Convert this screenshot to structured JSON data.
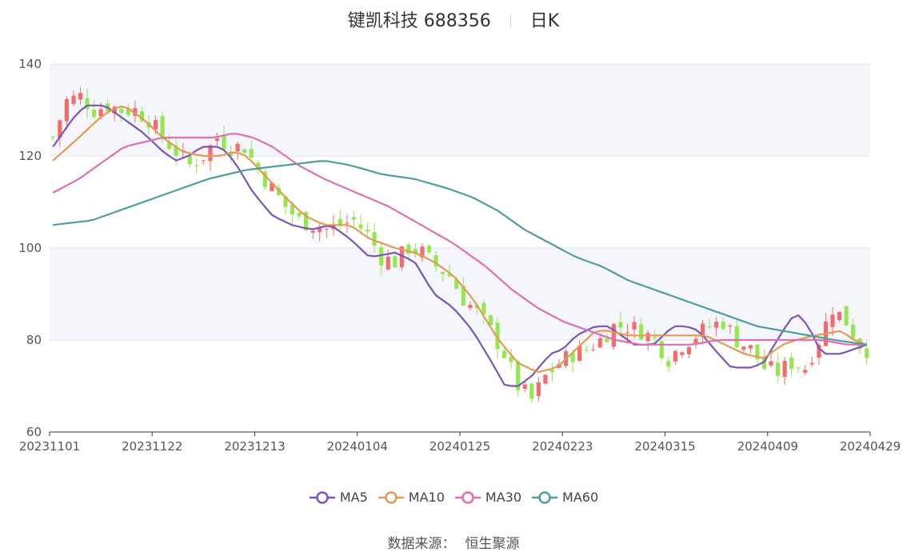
{
  "title": {
    "name": "键凯科技 688356",
    "period": "日K"
  },
  "source": {
    "label": "数据来源：",
    "value": "恒生聚源"
  },
  "colors": {
    "up": "#f56a6a",
    "down": "#92e84e",
    "MA5": "#7b55b8",
    "MA10": "#e39b53",
    "MA30": "#e06fb0",
    "MA60": "#4f9e9d",
    "band": "#f4f6fb",
    "grid": "#e2e6f2",
    "axis": "#333333"
  },
  "chart_data": {
    "type": "candlestick",
    "title": "键凯科技 688356 日K",
    "xlabel": "",
    "ylabel": "",
    "ylim": [
      60,
      140
    ],
    "yticks": [
      60,
      80,
      100,
      120,
      140
    ],
    "xticks": [
      "20231101",
      "20231122",
      "20231213",
      "20240104",
      "20240125",
      "20240223",
      "20240315",
      "20240409",
      "20240429"
    ],
    "grid": true,
    "legend_position": "bottom",
    "n_days": 120,
    "series": [
      {
        "name": "MA5",
        "anchors": [
          [
            0,
            122
          ],
          [
            3,
            128
          ],
          [
            5,
            131
          ],
          [
            8,
            131
          ],
          [
            11,
            128
          ],
          [
            14,
            125
          ],
          [
            17,
            121
          ],
          [
            19,
            119
          ],
          [
            21,
            120
          ],
          [
            23,
            122
          ],
          [
            26,
            122
          ],
          [
            28,
            119
          ],
          [
            31,
            112
          ],
          [
            34,
            107
          ],
          [
            37,
            105
          ],
          [
            40,
            104
          ],
          [
            43,
            105
          ],
          [
            46,
            102
          ],
          [
            49,
            98
          ],
          [
            53,
            99
          ],
          [
            56,
            97
          ],
          [
            59,
            90
          ],
          [
            62,
            87
          ],
          [
            65,
            82
          ],
          [
            68,
            75
          ],
          [
            70,
            70
          ],
          [
            72,
            70
          ],
          [
            74,
            72
          ],
          [
            77,
            77
          ],
          [
            79,
            78
          ],
          [
            81,
            81
          ],
          [
            84,
            83
          ],
          [
            86,
            83
          ],
          [
            88,
            81
          ],
          [
            90,
            79
          ],
          [
            93,
            79
          ],
          [
            96,
            83
          ],
          [
            98,
            83
          ],
          [
            100,
            82
          ],
          [
            103,
            77
          ],
          [
            105,
            74
          ],
          [
            108,
            74
          ],
          [
            110,
            75
          ],
          [
            113,
            82
          ],
          [
            115,
            86
          ],
          [
            117,
            83
          ],
          [
            119,
            77
          ],
          [
            122,
            77
          ],
          [
            124,
            78
          ],
          [
            126,
            79
          ]
        ]
      },
      {
        "name": "MA10",
        "anchors": [
          [
            0,
            119
          ],
          [
            4,
            124
          ],
          [
            7,
            128
          ],
          [
            9,
            130
          ],
          [
            11,
            131
          ],
          [
            14,
            128
          ],
          [
            17,
            124
          ],
          [
            20,
            121
          ],
          [
            23,
            120
          ],
          [
            26,
            120
          ],
          [
            28,
            121
          ],
          [
            30,
            120
          ],
          [
            32,
            117
          ],
          [
            36,
            111
          ],
          [
            39,
            107
          ],
          [
            42,
            105
          ],
          [
            46,
            105
          ],
          [
            49,
            102
          ],
          [
            53,
            100
          ],
          [
            56,
            99
          ],
          [
            59,
            97
          ],
          [
            62,
            94
          ],
          [
            65,
            89
          ],
          [
            69,
            80
          ],
          [
            72,
            75
          ],
          [
            75,
            73
          ],
          [
            78,
            74
          ],
          [
            81,
            78
          ],
          [
            84,
            82
          ],
          [
            86,
            82
          ],
          [
            89,
            81
          ],
          [
            94,
            81
          ],
          [
            98,
            81
          ],
          [
            101,
            81
          ],
          [
            104,
            79
          ],
          [
            107,
            77
          ],
          [
            110,
            76
          ],
          [
            113,
            79
          ],
          [
            115,
            80
          ],
          [
            118,
            81
          ],
          [
            122,
            82
          ],
          [
            124,
            80
          ],
          [
            126,
            79
          ]
        ]
      },
      {
        "name": "MA30",
        "anchors": [
          [
            0,
            112
          ],
          [
            4,
            115
          ],
          [
            8,
            119
          ],
          [
            11,
            122
          ],
          [
            14,
            123
          ],
          [
            17,
            124
          ],
          [
            21,
            124
          ],
          [
            25,
            124
          ],
          [
            28,
            125
          ],
          [
            31,
            124
          ],
          [
            34,
            122
          ],
          [
            38,
            118
          ],
          [
            42,
            115
          ],
          [
            47,
            112
          ],
          [
            52,
            109
          ],
          [
            57,
            105
          ],
          [
            62,
            101
          ],
          [
            67,
            96
          ],
          [
            71,
            91
          ],
          [
            75,
            87
          ],
          [
            79,
            84
          ],
          [
            83,
            82
          ],
          [
            87,
            80
          ],
          [
            91,
            79
          ],
          [
            95,
            79
          ],
          [
            99,
            79
          ],
          [
            103,
            80
          ],
          [
            108,
            80
          ],
          [
            112,
            80
          ],
          [
            115,
            80
          ],
          [
            119,
            80
          ],
          [
            123,
            79
          ],
          [
            126,
            79
          ]
        ]
      },
      {
        "name": "MA60",
        "anchors": [
          [
            0,
            105
          ],
          [
            6,
            106
          ],
          [
            12,
            109
          ],
          [
            18,
            112
          ],
          [
            24,
            115
          ],
          [
            30,
            117
          ],
          [
            36,
            118
          ],
          [
            42,
            119
          ],
          [
            46,
            118
          ],
          [
            51,
            116
          ],
          [
            56,
            115
          ],
          [
            61,
            113
          ],
          [
            65,
            111
          ],
          [
            69,
            108
          ],
          [
            73,
            104
          ],
          [
            77,
            101
          ],
          [
            81,
            98
          ],
          [
            85,
            96
          ],
          [
            89,
            93
          ],
          [
            93,
            91
          ],
          [
            97,
            89
          ],
          [
            101,
            87
          ],
          [
            105,
            85
          ],
          [
            109,
            83
          ],
          [
            113,
            82
          ],
          [
            117,
            81
          ],
          [
            121,
            80
          ],
          [
            126,
            79
          ]
        ]
      }
    ],
    "candles_close_path": [
      [
        0,
        124
      ],
      [
        2,
        132
      ],
      [
        4,
        133
      ],
      [
        6,
        130
      ],
      [
        8,
        131
      ],
      [
        10,
        130
      ],
      [
        12,
        130
      ],
      [
        14,
        128
      ],
      [
        16,
        124
      ],
      [
        18,
        121
      ],
      [
        20,
        118
      ],
      [
        22,
        120
      ],
      [
        24,
        124
      ],
      [
        26,
        122
      ],
      [
        28,
        122
      ],
      [
        30,
        117
      ],
      [
        32,
        113
      ],
      [
        34,
        109
      ],
      [
        36,
        106
      ],
      [
        38,
        105
      ],
      [
        40,
        104
      ],
      [
        42,
        105
      ],
      [
        44,
        106
      ],
      [
        46,
        103
      ],
      [
        48,
        98
      ],
      [
        50,
        97
      ],
      [
        52,
        100
      ],
      [
        54,
        99
      ],
      [
        56,
        96
      ],
      [
        58,
        94
      ],
      [
        60,
        89
      ],
      [
        62,
        86
      ],
      [
        64,
        82
      ],
      [
        66,
        77
      ],
      [
        68,
        70
      ],
      [
        70,
        67
      ],
      [
        72,
        72
      ],
      [
        74,
        75
      ],
      [
        76,
        77
      ],
      [
        78,
        78
      ],
      [
        80,
        80
      ],
      [
        82,
        83
      ],
      [
        84,
        83
      ],
      [
        86,
        82
      ],
      [
        88,
        80
      ],
      [
        90,
        76
      ],
      [
        92,
        79
      ],
      [
        94,
        81
      ],
      [
        96,
        83
      ],
      [
        98,
        84
      ],
      [
        100,
        80
      ],
      [
        102,
        78
      ],
      [
        104,
        74
      ],
      [
        106,
        73
      ],
      [
        108,
        75
      ],
      [
        110,
        74
      ],
      [
        112,
        80
      ],
      [
        114,
        87
      ],
      [
        116,
        84
      ],
      [
        118,
        79
      ],
      [
        120,
        77
      ],
      [
        122,
        74
      ],
      [
        124,
        78
      ],
      [
        126,
        80
      ]
    ]
  }
}
